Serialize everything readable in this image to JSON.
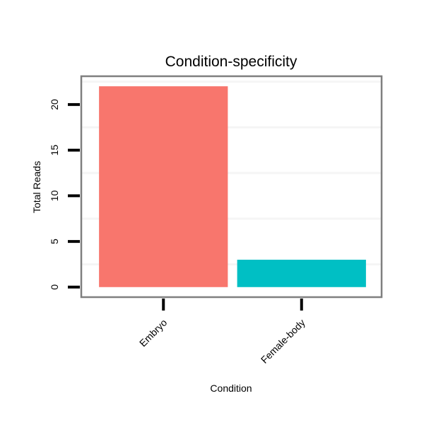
{
  "chart_data": {
    "type": "bar",
    "title": "Condition-specificity",
    "xlabel": "Condition",
    "ylabel": "Total Reads",
    "categories": [
      "Embryo",
      "Female-body"
    ],
    "values": [
      22,
      3
    ],
    "colors": [
      "#F8766D",
      "#00BFC4"
    ],
    "ylim": [
      -1.1,
      23.1
    ],
    "yticks": [
      0,
      5,
      10,
      15,
      20
    ],
    "ytick_labels": [
      "0",
      "5",
      "10",
      "15",
      "20"
    ],
    "grid": true,
    "legend": "none"
  }
}
